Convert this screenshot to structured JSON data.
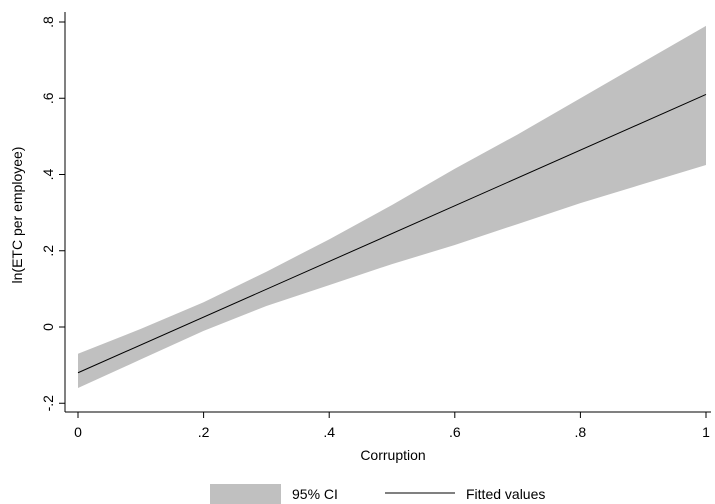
{
  "chart_data": {
    "type": "line",
    "xlabel": "Corruption",
    "ylabel": "ln(ETC per employee)",
    "xlim": [
      0,
      1
    ],
    "ylim": [
      -0.22,
      0.82
    ],
    "x_ticks": [
      {
        "value": 0,
        "label": "0"
      },
      {
        "value": 0.2,
        "label": ".2"
      },
      {
        "value": 0.4,
        "label": ".4"
      },
      {
        "value": 0.6,
        "label": ".6"
      },
      {
        "value": 0.8,
        "label": ".8"
      },
      {
        "value": 1,
        "label": "1"
      }
    ],
    "y_ticks": [
      {
        "value": -0.2,
        "label": "-.2"
      },
      {
        "value": 0,
        "label": "0"
      },
      {
        "value": 0.2,
        "label": ".2"
      },
      {
        "value": 0.4,
        "label": ".4"
      },
      {
        "value": 0.6,
        "label": ".6"
      },
      {
        "value": 0.8,
        "label": ".8"
      }
    ],
    "grid": false,
    "legend_position": "bottom",
    "series": [
      {
        "name": "95% CI",
        "kind": "band",
        "color": "#c0c0c0",
        "x": [
          0,
          0.1,
          0.2,
          0.3,
          0.4,
          0.5,
          0.6,
          0.7,
          0.8,
          0.9,
          1.0
        ],
        "lower": [
          -0.16,
          -0.085,
          -0.01,
          0.055,
          0.11,
          0.165,
          0.215,
          0.27,
          0.325,
          0.375,
          0.425
        ],
        "upper": [
          -0.07,
          -0.005,
          0.065,
          0.145,
          0.23,
          0.32,
          0.415,
          0.505,
          0.6,
          0.695,
          0.79
        ]
      },
      {
        "name": "Fitted values",
        "kind": "line",
        "color": "#000000",
        "x": [
          0,
          1
        ],
        "y": [
          -0.12,
          0.61
        ]
      }
    ]
  }
}
